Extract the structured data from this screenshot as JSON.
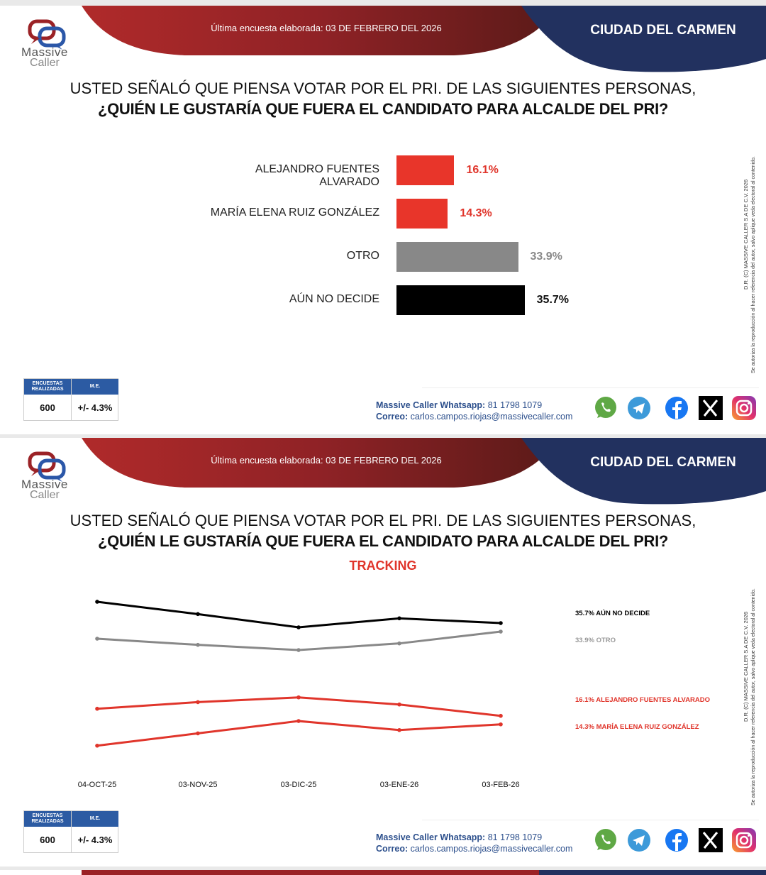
{
  "header": {
    "survey_date": "Última encuesta elaborada: 03 DE FEBRERO DEL 2026",
    "city": "CIUDAD DEL CARMEN",
    "logo_line1": "Massive",
    "logo_line2": "Caller"
  },
  "question": {
    "line1": "USTED SEÑALÓ QUE PIENSA VOTAR POR EL PRI. DE LAS SIGUIENTES PERSONAS,",
    "line2": "¿QUIÉN LE GUSTARÍA QUE FUERA EL CANDIDATO PARA ALCALDE DEL PRI?",
    "tracking_label": "TRACKING"
  },
  "side_note": {
    "line1": "D.R. (C) MASSIVE CALLER S.A DE C.V. 2026",
    "line2": "Se autoriza la reproducción al hacer referencia del autor, salvo aplique veda electoral al contenido."
  },
  "stats": {
    "surveys_header": "ENCUESTAS REALIZADAS",
    "me_header": "M.E.",
    "surveys_value": "600",
    "me_value": "+/- 4.3%"
  },
  "contact": {
    "whatsapp_label": "Massive Caller Whatsapp:",
    "whatsapp_number": "81 1798 1079",
    "email_label": "Correo:",
    "email": "carlos.campos.riojas@massivecaller.com"
  },
  "social_icons": [
    "whatsapp-icon",
    "telegram-icon",
    "facebook-icon",
    "x-icon",
    "instagram-icon"
  ],
  "colors": {
    "red": "#e8352a",
    "gray": "#888888",
    "black": "#000000",
    "navy": "#22315f",
    "darkred": "#9b2226"
  },
  "chart_data": [
    {
      "type": "bar",
      "orientation": "horizontal",
      "title": "¿QUIÉN LE GUSTARÍA QUE FUERA EL CANDIDATO PARA ALCALDE DEL PRI?",
      "categories": [
        "ALEJANDRO FUENTES ALVARADO",
        "MARÍA ELENA RUIZ GONZÁLEZ",
        "OTRO",
        "AÚN NO DECIDE"
      ],
      "values": [
        16.1,
        14.3,
        33.9,
        35.7
      ],
      "labels": [
        "16.1%",
        "14.3%",
        "33.9%",
        "35.7%"
      ],
      "colors": [
        "#e8352a",
        "#e8352a",
        "#888888",
        "#000000"
      ],
      "xlim": [
        0,
        40
      ]
    },
    {
      "type": "line",
      "title": "TRACKING",
      "x": [
        "04-OCT-25",
        "03-NOV-25",
        "03-DIC-25",
        "03-ENE-26",
        "03-FEB-26"
      ],
      "ylim": [
        5,
        45
      ],
      "grid": false,
      "legend": "right",
      "series": [
        {
          "name": "AÚN NO DECIDE",
          "label": "35.7% AÚN NO DECIDE",
          "color": "#000000",
          "values": [
            40.2,
            37.6,
            34.8,
            36.7,
            35.7
          ]
        },
        {
          "name": "OTRO",
          "label": "33.9% OTRO",
          "color": "#888888",
          "values": [
            32.4,
            31.1,
            30.0,
            31.4,
            33.9
          ]
        },
        {
          "name": "ALEJANDRO FUENTES ALVARADO",
          "label": "16.1% ALEJANDRO FUENTES ALVARADO",
          "color": "#e0352b",
          "values": [
            17.6,
            19.0,
            20.0,
            18.5,
            16.1
          ]
        },
        {
          "name": "MARÍA ELENA RUIZ GONZÁLEZ",
          "label": "14.3% MARÍA ELENA RUIZ GONZÁLEZ",
          "color": "#e0352b",
          "values": [
            9.8,
            12.4,
            15.0,
            13.1,
            14.3
          ]
        }
      ]
    }
  ]
}
